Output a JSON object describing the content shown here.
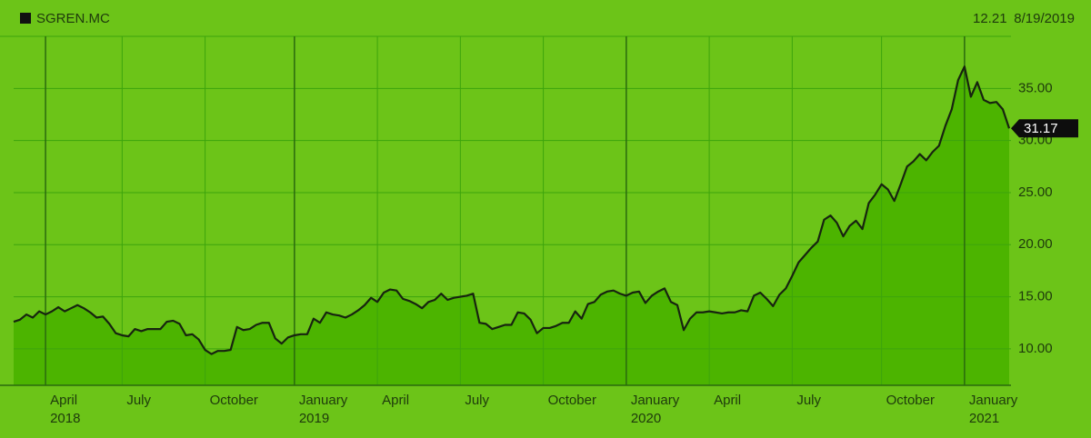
{
  "chart_data": {
    "type": "area",
    "series": [
      {
        "name": "SGREN.MC",
        "color": "#17240f",
        "fill": "#4cb400",
        "values": [
          12.6,
          12.8,
          13.3,
          13.0,
          13.6,
          13.3,
          13.6,
          14.0,
          13.6,
          13.9,
          14.2,
          13.9,
          13.5,
          13.0,
          13.1,
          12.4,
          11.5,
          11.3,
          11.2,
          11.9,
          11.7,
          11.9,
          11.9,
          11.9,
          12.6,
          12.7,
          12.4,
          11.3,
          11.4,
          10.9,
          9.9,
          9.5,
          9.8,
          9.8,
          9.9,
          12.1,
          11.8,
          11.9,
          12.3,
          12.5,
          12.5,
          11.0,
          10.5,
          11.1,
          11.3,
          11.4,
          11.4,
          12.9,
          12.5,
          13.5,
          13.3,
          13.2,
          13.0,
          13.3,
          13.7,
          14.2,
          14.9,
          14.5,
          15.4,
          15.7,
          15.6,
          14.8,
          14.6,
          14.3,
          13.9,
          14.5,
          14.7,
          15.3,
          14.7,
          14.9,
          15.0,
          15.1,
          15.3,
          12.5,
          12.4,
          11.9,
          12.1,
          12.3,
          12.3,
          13.5,
          13.4,
          12.8,
          11.5,
          12.0,
          12.0,
          12.2,
          12.5,
          12.5,
          13.6,
          12.9,
          14.3,
          14.5,
          15.2,
          15.5,
          15.6,
          15.3,
          15.1,
          15.4,
          15.5,
          14.4,
          15.1,
          15.5,
          15.8,
          14.5,
          14.2,
          11.8,
          12.9,
          13.5,
          13.5,
          13.6,
          13.5,
          13.4,
          13.5,
          13.5,
          13.7,
          13.6,
          15.1,
          15.4,
          14.8,
          14.1,
          15.2,
          15.8,
          17.0,
          18.3,
          19.0,
          19.7,
          20.3,
          22.4,
          22.8,
          22.1,
          20.8,
          21.8,
          22.3,
          21.5,
          24.0,
          24.8,
          25.8,
          25.3,
          24.2,
          25.8,
          27.5,
          28.0,
          28.7,
          28.1,
          28.9,
          29.5,
          31.4,
          33.0,
          35.8,
          37.1,
          34.2,
          35.6,
          33.9,
          33.6,
          33.7,
          33.0,
          31.17
        ]
      }
    ],
    "categories": [
      null,
      null,
      null,
      null,
      null,
      "April 2018",
      null,
      null,
      null,
      null,
      null,
      null,
      null,
      null,
      null,
      null,
      null,
      "July",
      null,
      null,
      null,
      null,
      null,
      null,
      null,
      null,
      null,
      null,
      null,
      null,
      "October",
      null,
      null,
      null,
      null,
      null,
      null,
      null,
      null,
      null,
      null,
      null,
      null,
      null,
      "January 2019",
      null,
      null,
      null,
      null,
      null,
      null,
      null,
      null,
      null,
      null,
      null,
      null,
      "April",
      null,
      null,
      null,
      null,
      null,
      null,
      null,
      null,
      null,
      null,
      null,
      null,
      "July",
      null,
      null,
      null,
      null,
      null,
      null,
      null,
      null,
      null,
      null,
      null,
      null,
      "October",
      null,
      null,
      null,
      null,
      null,
      null,
      null,
      null,
      null,
      null,
      null,
      null,
      "January 2020",
      null,
      null,
      null,
      null,
      null,
      null,
      null,
      null,
      null,
      null,
      null,
      null,
      "April",
      null,
      null,
      null,
      null,
      null,
      null,
      null,
      null,
      null,
      null,
      null,
      null,
      "July",
      null,
      null,
      null,
      null,
      null,
      null,
      null,
      null,
      null,
      null,
      null,
      null,
      null,
      "October",
      null,
      null,
      null,
      null,
      null,
      null,
      null,
      null,
      null,
      null,
      null,
      null,
      "January 2021",
      null,
      null,
      null,
      null,
      null,
      null,
      null
    ],
    "ylim": [
      6.5,
      40
    ],
    "yticks": [
      {
        "value": 10,
        "label": "10.00"
      },
      {
        "value": 15,
        "label": "15.00"
      },
      {
        "value": 20,
        "label": "20.00"
      },
      {
        "value": 25,
        "label": "25.00"
      },
      {
        "value": 30,
        "label": "30.00"
      },
      {
        "value": 35,
        "label": "35.00"
      }
    ],
    "grid": true,
    "readout": {
      "value": 12.21,
      "date": "8/19/2019"
    }
  }
}
